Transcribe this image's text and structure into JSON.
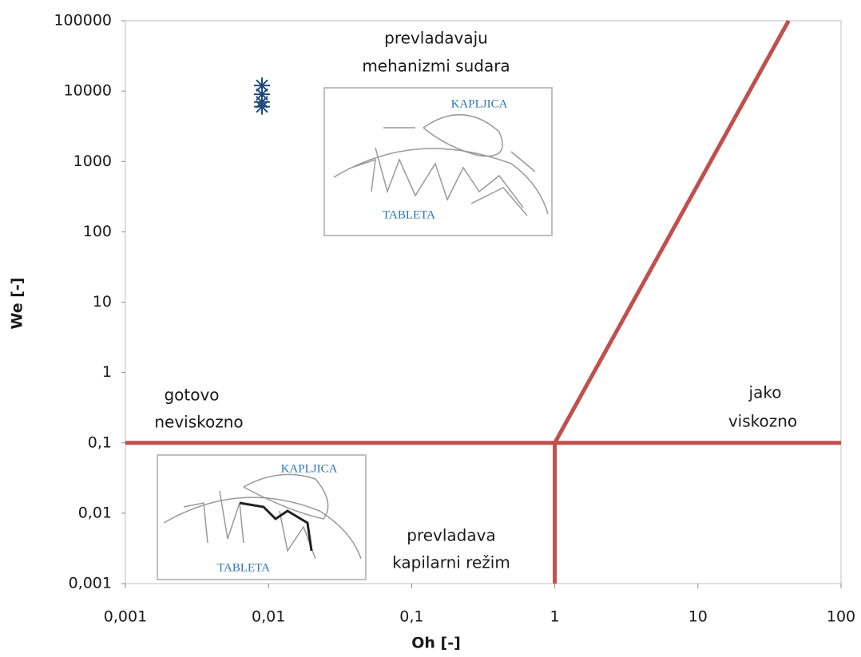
{
  "chart_data": {
    "type": "line",
    "x_label": "Oh [-]",
    "y_label": "We [-]",
    "log_x": true,
    "log_y": true,
    "xlim": [
      0.001,
      100
    ],
    "ylim": [
      0.001,
      100000
    ],
    "xticks": [
      {
        "value": 0.001,
        "label": "0,001"
      },
      {
        "value": 0.01,
        "label": "0,01"
      },
      {
        "value": 0.1,
        "label": "0,1"
      },
      1,
      10,
      100
    ],
    "yticks": [
      {
        "value": 0.001,
        "label": "0,001"
      },
      {
        "value": 0.01,
        "label": "0,01"
      },
      {
        "value": 0.1,
        "label": "0,1"
      },
      1,
      10,
      100,
      1000,
      10000,
      100000
    ],
    "lines": {
      "color": "#c0504d",
      "series": [
        {
          "x": [
            0.001,
            100
          ],
          "y": [
            0.1,
            0.1
          ]
        },
        {
          "x": [
            1,
            1
          ],
          "y": [
            0.001,
            0.1
          ]
        },
        {
          "x": [
            1,
            43
          ],
          "y": [
            0.1,
            100000
          ]
        }
      ]
    },
    "points": {
      "color": "#1f497d",
      "marker": "asterisk",
      "x": [
        0.009,
        0.009,
        0.009,
        0.009
      ],
      "y": [
        12000,
        9000,
        7000,
        6000
      ]
    },
    "annotations": [
      [
        "prevladavaju",
        "mehanizmi sudara"
      ],
      [
        "gotovo",
        "neviskozno"
      ],
      [
        "jako",
        "viskozno"
      ],
      [
        "prevladava",
        "kapilarni režim"
      ]
    ],
    "insets": [
      {
        "labels": [
          "KAPLJICA",
          "TABLETA"
        ]
      },
      {
        "labels": [
          "KAPLJICA",
          "TABLETA"
        ]
      }
    ]
  }
}
